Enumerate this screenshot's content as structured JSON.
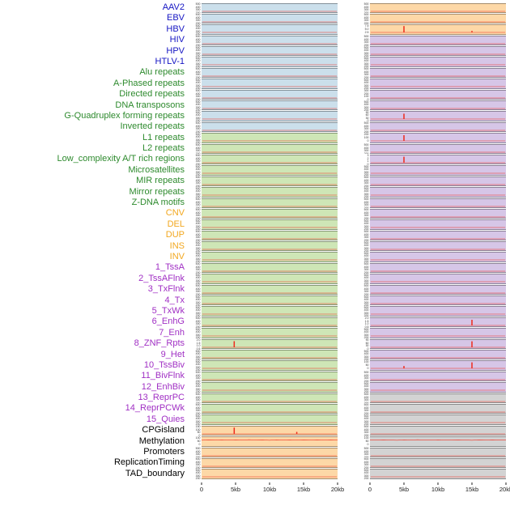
{
  "chart_data": {
    "type": "line",
    "title": "",
    "description": "Multi-track genomic feature density profiles; two panel columns per feature row, red density line over colored track backgrounds",
    "x": {
      "ticks": [
        "0",
        "5kb",
        "10kb",
        "15kb",
        "20kb"
      ],
      "range_kb": [
        0,
        20
      ]
    },
    "line_color": "#ee2b1c",
    "default_yticks": [
      "500",
      "400",
      "300",
      "200",
      "100",
      "0"
    ],
    "panel_colors": {
      "blue": "#cbdfeb",
      "green": "#cee6b6",
      "orange": "#fdd8a7",
      "purple": "#d6c6e7",
      "gray": "#d3d3d3"
    },
    "label_colors": {
      "virus": "#1515c3",
      "repeat": "#2d8a2d",
      "sv": "#f2a71e",
      "chromatin": "#a02fc4",
      "other": "#000000"
    },
    "rows": [
      {
        "label": "AAV2",
        "group": "virus",
        "left": {
          "bg": "blue"
        },
        "right": {
          "bg": "orange"
        }
      },
      {
        "label": "EBV",
        "group": "virus",
        "left": {
          "bg": "blue"
        },
        "right": {
          "bg": "orange"
        }
      },
      {
        "label": "HBV",
        "group": "virus",
        "left": {
          "bg": "blue"
        },
        "right": {
          "bg": "orange",
          "yticks": [
            "7.5",
            "5.0",
            "2.5"
          ],
          "spikes": [
            {
              "x": 5,
              "h": 0.95
            },
            {
              "x": 15,
              "h": 0.22
            }
          ]
        }
      },
      {
        "label": "HIV",
        "group": "virus",
        "left": {
          "bg": "blue"
        },
        "right": {
          "bg": "purple"
        }
      },
      {
        "label": "HPV",
        "group": "virus",
        "left": {
          "bg": "blue"
        },
        "right": {
          "bg": "purple"
        }
      },
      {
        "label": "HTLV-1",
        "group": "virus",
        "left": {
          "bg": "blue"
        },
        "right": {
          "bg": "purple"
        }
      },
      {
        "label": "Alu repeats",
        "group": "repeat",
        "left": {
          "bg": "blue"
        },
        "right": {
          "bg": "purple"
        }
      },
      {
        "label": "A-Phased repeats",
        "group": "repeat",
        "left": {
          "bg": "blue"
        },
        "right": {
          "bg": "purple"
        }
      },
      {
        "label": "Directed repeats",
        "group": "repeat",
        "left": {
          "bg": "blue"
        },
        "right": {
          "bg": "purple",
          "yticks": [
            "300",
            "200",
            "100",
            "0"
          ]
        }
      },
      {
        "label": "DNA transposons",
        "group": "repeat",
        "left": {
          "bg": "blue"
        },
        "right": {
          "bg": "purple"
        }
      },
      {
        "label": "G-Quadruplex forming repeats",
        "group": "repeat",
        "left": {
          "bg": "blue"
        },
        "right": {
          "bg": "purple",
          "yticks": [
            "90",
            "60",
            "30",
            "0"
          ],
          "spikes": [
            {
              "x": 5,
              "h": 0.8
            }
          ]
        }
      },
      {
        "label": "Inverted repeats",
        "group": "repeat",
        "left": {
          "bg": "blue"
        },
        "right": {
          "bg": "purple"
        }
      },
      {
        "label": "L1 repeats",
        "group": "repeat",
        "left": {
          "bg": "green"
        },
        "right": {
          "bg": "purple",
          "yticks": [
            "200",
            "100",
            "0"
          ],
          "spikes": [
            {
              "x": 5,
              "h": 0.85
            }
          ]
        }
      },
      {
        "label": "L2 repeats",
        "group": "repeat",
        "left": {
          "bg": "green"
        },
        "right": {
          "bg": "purple"
        }
      },
      {
        "label": "Low_complexity A/T rich regions",
        "group": "repeat",
        "left": {
          "bg": "green"
        },
        "right": {
          "bg": "purple",
          "yticks": [
            "3",
            "2",
            "1",
            "0"
          ],
          "spikes": [
            {
              "x": 5,
              "h": 0.9
            }
          ]
        }
      },
      {
        "label": "Microsatellites",
        "group": "repeat",
        "left": {
          "bg": "green"
        },
        "right": {
          "bg": "purple"
        }
      },
      {
        "label": "MIR repeats",
        "group": "repeat",
        "left": {
          "bg": "green"
        },
        "right": {
          "bg": "purple"
        }
      },
      {
        "label": "Mirror repeats",
        "group": "repeat",
        "left": {
          "bg": "green"
        },
        "right": {
          "bg": "purple"
        }
      },
      {
        "label": "Z-DNA motifs",
        "group": "repeat",
        "left": {
          "bg": "green"
        },
        "right": {
          "bg": "purple"
        }
      },
      {
        "label": "CNV",
        "group": "sv",
        "left": {
          "bg": "green"
        },
        "right": {
          "bg": "purple"
        }
      },
      {
        "label": "DEL",
        "group": "sv",
        "left": {
          "bg": "green"
        },
        "right": {
          "bg": "purple"
        }
      },
      {
        "label": "DUP",
        "group": "sv",
        "left": {
          "bg": "green"
        },
        "right": {
          "bg": "purple"
        }
      },
      {
        "label": "INS",
        "group": "sv",
        "left": {
          "bg": "green"
        },
        "right": {
          "bg": "purple"
        }
      },
      {
        "label": "INV",
        "group": "sv",
        "left": {
          "bg": "green"
        },
        "right": {
          "bg": "purple"
        }
      },
      {
        "label": "1_TssA",
        "group": "chromatin",
        "left": {
          "bg": "green"
        },
        "right": {
          "bg": "purple"
        }
      },
      {
        "label": "2_TssAFlnk",
        "group": "chromatin",
        "left": {
          "bg": "green"
        },
        "right": {
          "bg": "purple"
        }
      },
      {
        "label": "3_TxFlnk",
        "group": "chromatin",
        "left": {
          "bg": "green"
        },
        "right": {
          "bg": "purple"
        }
      },
      {
        "label": "4_Tx",
        "group": "chromatin",
        "left": {
          "bg": "green"
        },
        "right": {
          "bg": "purple"
        }
      },
      {
        "label": "5_TxWk",
        "group": "chromatin",
        "left": {
          "bg": "green"
        },
        "right": {
          "bg": "purple"
        }
      },
      {
        "label": "6_EnhG",
        "group": "chromatin",
        "left": {
          "bg": "green"
        },
        "right": {
          "bg": "purple",
          "yticks": [
            "2.0",
            "1.5",
            "1.0",
            "0.5",
            "0.0"
          ],
          "spikes": [
            {
              "x": 15,
              "h": 0.85
            }
          ]
        }
      },
      {
        "label": "7_Enh",
        "group": "chromatin",
        "left": {
          "bg": "green"
        },
        "right": {
          "bg": "purple"
        }
      },
      {
        "label": "8_ZNF_Rpts",
        "group": "chromatin",
        "left": {
          "bg": "green",
          "yticks": [
            "2.0",
            "1.5",
            "1.0",
            "0.5",
            "0.0"
          ],
          "spikes": [
            {
              "x": 4.8,
              "h": 0.92
            }
          ]
        },
        "right": {
          "bg": "purple",
          "yticks": [
            "90",
            "60",
            "30",
            "0"
          ],
          "spikes": [
            {
              "x": 15,
              "h": 0.9
            }
          ]
        }
      },
      {
        "label": "9_Het",
        "group": "chromatin",
        "left": {
          "bg": "green"
        },
        "right": {
          "bg": "purple"
        }
      },
      {
        "label": "10_TssBiv",
        "group": "chromatin",
        "left": {
          "bg": "green"
        },
        "right": {
          "bg": "purple",
          "yticks": [
            "100",
            "50",
            "0"
          ],
          "spikes": [
            {
              "x": 5,
              "h": 0.35
            },
            {
              "x": 15,
              "h": 0.9
            }
          ]
        }
      },
      {
        "label": "11_BivFlnk",
        "group": "chromatin",
        "left": {
          "bg": "green"
        },
        "right": {
          "bg": "purple"
        }
      },
      {
        "label": "12_EnhBiv",
        "group": "chromatin",
        "left": {
          "bg": "green"
        },
        "right": {
          "bg": "purple"
        }
      },
      {
        "label": "13_ReprPC",
        "group": "chromatin",
        "left": {
          "bg": "green"
        },
        "right": {
          "bg": "gray"
        }
      },
      {
        "label": "14_ReprPCWk",
        "group": "chromatin",
        "left": {
          "bg": "green"
        },
        "right": {
          "bg": "gray"
        }
      },
      {
        "label": "15_Quies",
        "group": "chromatin",
        "left": {
          "bg": "green"
        },
        "right": {
          "bg": "gray"
        }
      },
      {
        "label": "CPGisland",
        "group": "other",
        "left": {
          "bg": "orange",
          "yticks": [
            "150",
            "100",
            "50",
            "0"
          ],
          "spikes": [
            {
              "x": 4.8,
              "h": 0.95
            },
            {
              "x": 14,
              "h": 0.3
            }
          ]
        },
        "right": {
          "bg": "gray"
        }
      },
      {
        "label": "Methylation",
        "group": "other",
        "left": {
          "bg": "orange",
          "yticks": [
            "100",
            "50",
            "0"
          ],
          "line": [
            0.68,
            0.72,
            0.7,
            0.74,
            0.69,
            0.73,
            0.71,
            0.75,
            0.7,
            0.72,
            0.68,
            0.74,
            0.71,
            0.73,
            0.69,
            0.72,
            0.7,
            0.74,
            0.71,
            0.73,
            0.7
          ]
        },
        "right": {
          "bg": "gray",
          "yticks": [
            "100",
            "50",
            "0"
          ],
          "line": [
            0.72,
            0.7,
            0.74,
            0.71,
            0.68,
            0.73,
            0.7,
            0.75,
            0.71,
            0.69,
            0.73,
            0.7,
            0.72,
            0.74,
            0.7,
            0.68,
            0.72,
            0.71,
            0.74,
            0.7,
            0.72
          ]
        }
      },
      {
        "label": "Promoters",
        "group": "other",
        "left": {
          "bg": "orange"
        },
        "right": {
          "bg": "gray"
        }
      },
      {
        "label": "ReplicationTiming",
        "group": "other",
        "left": {
          "bg": "orange"
        },
        "right": {
          "bg": "gray"
        }
      },
      {
        "label": "TAD_boundary",
        "group": "other",
        "left": {
          "bg": "orange"
        },
        "right": {
          "bg": "gray"
        }
      }
    ]
  }
}
